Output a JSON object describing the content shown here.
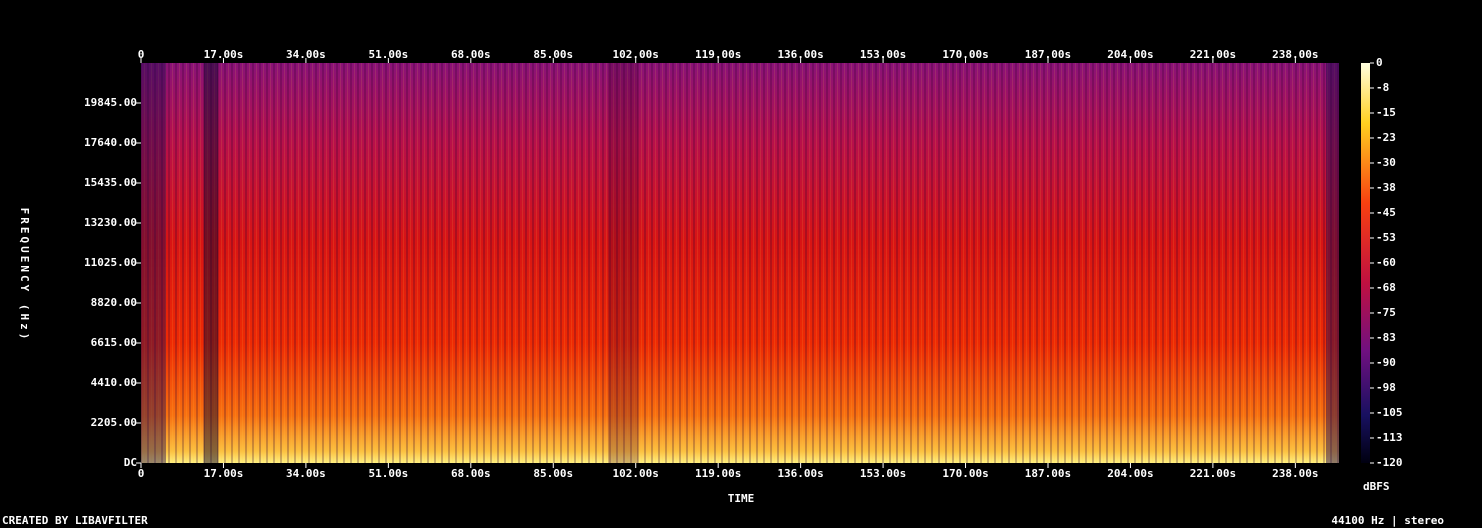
{
  "chart_data": {
    "type": "spectrogram",
    "xlabel": "TIME",
    "ylabel": "FREQUENCY (Hz)",
    "colorbar_label": "dBFS",
    "footer_left": "CREATED BY LIBAVFILTER",
    "footer_right": "44100 Hz | stereo",
    "xlim": [
      0,
      247
    ],
    "ylim": [
      0,
      22050
    ],
    "clim": [
      -120,
      0
    ],
    "xticks": [
      0,
      {
        "value": 17,
        "label": "17.00s"
      },
      {
        "value": 34,
        "label": "34.00s"
      },
      {
        "value": 51,
        "label": "51.00s"
      },
      {
        "value": 68,
        "label": "68.00s"
      },
      {
        "value": 85,
        "label": "85.00s"
      },
      {
        "value": 102,
        "label": "102.00s"
      },
      {
        "value": 119,
        "label": "119.00s"
      },
      {
        "value": 136,
        "label": "136.00s"
      },
      {
        "value": 153,
        "label": "153.00s"
      },
      {
        "value": 170,
        "label": "170.00s"
      },
      {
        "value": 187,
        "label": "187.00s"
      },
      {
        "value": 204,
        "label": "204.00s"
      },
      {
        "value": 221,
        "label": "221.00s"
      },
      {
        "value": 238,
        "label": "238.00s"
      }
    ],
    "yticks": [
      {
        "value": 0,
        "label": "DC"
      },
      {
        "value": 2205,
        "label": "2205.00"
      },
      {
        "value": 4410,
        "label": "4410.00"
      },
      {
        "value": 6615,
        "label": "6615.00"
      },
      {
        "value": 8820,
        "label": "8820.00"
      },
      {
        "value": 11025,
        "label": "11025.00"
      },
      {
        "value": 13230,
        "label": "13230.00"
      },
      {
        "value": 15435,
        "label": "15435.00"
      },
      {
        "value": 17640,
        "label": "17640.00"
      },
      {
        "value": 19845,
        "label": "19845.00"
      }
    ],
    "cticks": [
      0,
      {
        "value": -7.5,
        "label": "-8"
      },
      -15,
      {
        "value": -22.5,
        "label": "-23"
      },
      -30,
      {
        "value": -37.5,
        "label": "-38"
      },
      -45,
      {
        "value": -52.5,
        "label": "-53"
      },
      -60,
      {
        "value": -67.5,
        "label": "-68"
      },
      -75,
      {
        "value": -82.5,
        "label": "-83"
      },
      -90,
      {
        "value": -97.5,
        "label": "-98"
      },
      -105,
      {
        "value": -112.5,
        "label": "-113"
      },
      -120
    ]
  }
}
